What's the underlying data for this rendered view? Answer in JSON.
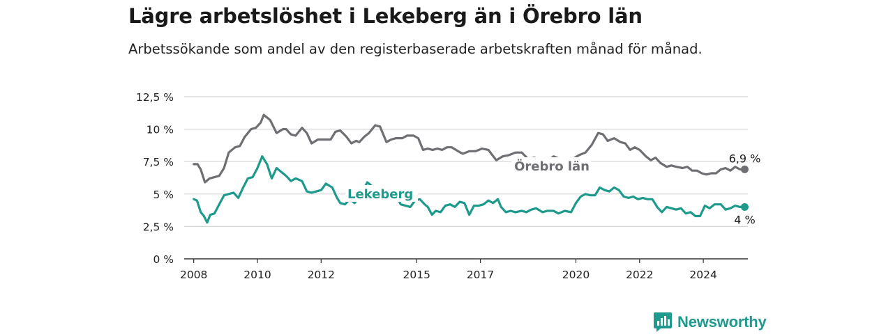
{
  "header": {
    "title": "Lägre arbetslöshet i Lekeberg än i Örebro län",
    "subtitle": "Arbetssökande som andel av den registerbaserade arbetskraften månad för månad."
  },
  "brand": {
    "name": "Newsworthy",
    "icon": "newsworthy-bar-chart-logo-icon",
    "color": "#1f9a8e"
  },
  "chart_data": {
    "type": "line",
    "title": "",
    "xlabel": "",
    "ylabel": "",
    "xlim": [
      2007.7,
      2025.4
    ],
    "ylim": [
      0,
      12.5
    ],
    "grid": true,
    "legend": "inline labels",
    "y_ticks": [
      0,
      2.5,
      5,
      7.5,
      10,
      12.5
    ],
    "y_tick_labels": [
      "0 %",
      "2,5 %",
      "5 %",
      "7,5 %",
      "10 %",
      "12,5 %"
    ],
    "x_ticks": [
      2008,
      2010,
      2012,
      2015,
      2017,
      2020,
      2022,
      2024
    ],
    "x_tick_labels": [
      "2008",
      "2010",
      "2012",
      "2015",
      "2017",
      "2020",
      "2022",
      "2024"
    ],
    "series": [
      {
        "name": "Örebro län",
        "color": "#6e6e73",
        "end_label": "6,9 %",
        "points": [
          [
            2008.0,
            7.3
          ],
          [
            2008.12,
            7.3
          ],
          [
            2008.22,
            6.9
          ],
          [
            2008.35,
            5.9
          ],
          [
            2008.5,
            6.2
          ],
          [
            2008.65,
            6.3
          ],
          [
            2008.8,
            6.4
          ],
          [
            2008.95,
            7.0
          ],
          [
            2009.1,
            8.2
          ],
          [
            2009.3,
            8.6
          ],
          [
            2009.45,
            8.7
          ],
          [
            2009.6,
            9.4
          ],
          [
            2009.8,
            10.0
          ],
          [
            2009.95,
            10.1
          ],
          [
            2010.1,
            10.5
          ],
          [
            2010.2,
            11.1
          ],
          [
            2010.4,
            10.7
          ],
          [
            2010.6,
            9.7
          ],
          [
            2010.8,
            10.0
          ],
          [
            2010.9,
            10.0
          ],
          [
            2011.05,
            9.6
          ],
          [
            2011.2,
            9.5
          ],
          [
            2011.4,
            10.1
          ],
          [
            2011.55,
            9.7
          ],
          [
            2011.7,
            8.9
          ],
          [
            2011.9,
            9.2
          ],
          [
            2012.1,
            9.2
          ],
          [
            2012.3,
            9.2
          ],
          [
            2012.45,
            9.8
          ],
          [
            2012.6,
            9.9
          ],
          [
            2012.8,
            9.4
          ],
          [
            2012.95,
            8.9
          ],
          [
            2013.1,
            9.1
          ],
          [
            2013.2,
            9.0
          ],
          [
            2013.35,
            9.4
          ],
          [
            2013.5,
            9.7
          ],
          [
            2013.7,
            10.3
          ],
          [
            2013.85,
            10.2
          ],
          [
            2014.05,
            9.0
          ],
          [
            2014.2,
            9.2
          ],
          [
            2014.35,
            9.3
          ],
          [
            2014.55,
            9.3
          ],
          [
            2014.7,
            9.5
          ],
          [
            2014.9,
            9.5
          ],
          [
            2015.05,
            9.3
          ],
          [
            2015.2,
            8.4
          ],
          [
            2015.35,
            8.5
          ],
          [
            2015.5,
            8.4
          ],
          [
            2015.65,
            8.5
          ],
          [
            2015.8,
            8.4
          ],
          [
            2015.95,
            8.6
          ],
          [
            2016.1,
            8.6
          ],
          [
            2016.3,
            8.3
          ],
          [
            2016.45,
            8.1
          ],
          [
            2016.65,
            8.3
          ],
          [
            2016.85,
            8.3
          ],
          [
            2017.05,
            8.5
          ],
          [
            2017.25,
            8.4
          ],
          [
            2017.5,
            7.6
          ],
          [
            2017.7,
            7.9
          ],
          [
            2017.9,
            8.0
          ],
          [
            2018.1,
            8.2
          ],
          [
            2018.3,
            8.2
          ],
          [
            2018.5,
            7.7
          ],
          [
            2018.7,
            7.8
          ],
          [
            2018.85,
            7.6
          ],
          [
            2019.0,
            7.7
          ],
          [
            2019.15,
            7.6
          ],
          [
            2019.3,
            7.9
          ],
          [
            2019.5,
            7.7
          ],
          [
            2019.7,
            7.6
          ],
          [
            2019.9,
            7.7
          ],
          [
            2020.1,
            8.0
          ],
          [
            2020.3,
            8.2
          ],
          [
            2020.5,
            8.8
          ],
          [
            2020.7,
            9.7
          ],
          [
            2020.85,
            9.6
          ],
          [
            2021.0,
            9.1
          ],
          [
            2021.2,
            9.3
          ],
          [
            2021.4,
            9.0
          ],
          [
            2021.55,
            8.9
          ],
          [
            2021.7,
            8.4
          ],
          [
            2021.85,
            8.6
          ],
          [
            2022.0,
            8.4
          ],
          [
            2022.2,
            7.9
          ],
          [
            2022.35,
            7.6
          ],
          [
            2022.5,
            7.8
          ],
          [
            2022.65,
            7.4
          ],
          [
            2022.85,
            7.1
          ],
          [
            2023.0,
            7.2
          ],
          [
            2023.15,
            7.1
          ],
          [
            2023.35,
            7.0
          ],
          [
            2023.5,
            7.1
          ],
          [
            2023.65,
            6.8
          ],
          [
            2023.8,
            6.8
          ],
          [
            2023.95,
            6.6
          ],
          [
            2024.1,
            6.5
          ],
          [
            2024.25,
            6.6
          ],
          [
            2024.4,
            6.6
          ],
          [
            2024.55,
            6.9
          ],
          [
            2024.7,
            7.0
          ],
          [
            2024.85,
            6.8
          ],
          [
            2025.0,
            7.1
          ],
          [
            2025.15,
            6.9
          ],
          [
            2025.3,
            6.9
          ]
        ]
      },
      {
        "name": "Lekeberg",
        "color": "#1e9a8d",
        "end_label": "4 %",
        "points": [
          [
            2008.0,
            4.6
          ],
          [
            2008.1,
            4.5
          ],
          [
            2008.22,
            3.6
          ],
          [
            2008.32,
            3.3
          ],
          [
            2008.42,
            2.8
          ],
          [
            2008.52,
            3.4
          ],
          [
            2008.65,
            3.5
          ],
          [
            2008.8,
            4.2
          ],
          [
            2008.95,
            4.9
          ],
          [
            2009.1,
            5.0
          ],
          [
            2009.25,
            5.1
          ],
          [
            2009.4,
            4.7
          ],
          [
            2009.55,
            5.5
          ],
          [
            2009.7,
            6.2
          ],
          [
            2009.85,
            6.3
          ],
          [
            2010.0,
            7.0
          ],
          [
            2010.15,
            7.9
          ],
          [
            2010.3,
            7.3
          ],
          [
            2010.45,
            6.2
          ],
          [
            2010.6,
            7.0
          ],
          [
            2010.75,
            6.7
          ],
          [
            2010.9,
            6.4
          ],
          [
            2011.05,
            6.0
          ],
          [
            2011.2,
            6.2
          ],
          [
            2011.4,
            6.0
          ],
          [
            2011.55,
            5.2
          ],
          [
            2011.7,
            5.1
          ],
          [
            2011.85,
            5.2
          ],
          [
            2012.0,
            5.3
          ],
          [
            2012.15,
            5.8
          ],
          [
            2012.35,
            5.5
          ],
          [
            2012.5,
            4.7
          ],
          [
            2012.6,
            4.3
          ],
          [
            2012.75,
            4.2
          ],
          [
            2012.9,
            4.6
          ],
          [
            2013.05,
            4.3
          ],
          [
            2013.25,
            5.0
          ],
          [
            2013.45,
            5.9
          ],
          [
            2013.6,
            5.6
          ],
          [
            2013.75,
            5.1
          ],
          [
            2013.9,
            5.0
          ],
          [
            2014.05,
            5.3
          ],
          [
            2014.2,
            4.6
          ],
          [
            2014.35,
            4.9
          ],
          [
            2014.5,
            4.2
          ],
          [
            2014.65,
            4.1
          ],
          [
            2014.8,
            4.0
          ],
          [
            2014.95,
            4.5
          ],
          [
            2015.1,
            4.6
          ],
          [
            2015.25,
            4.2
          ],
          [
            2015.35,
            4.0
          ],
          [
            2015.48,
            3.4
          ],
          [
            2015.6,
            3.7
          ],
          [
            2015.75,
            3.6
          ],
          [
            2015.9,
            4.1
          ],
          [
            2016.05,
            4.2
          ],
          [
            2016.2,
            4.0
          ],
          [
            2016.35,
            4.4
          ],
          [
            2016.5,
            4.3
          ],
          [
            2016.65,
            3.4
          ],
          [
            2016.8,
            4.1
          ],
          [
            2016.95,
            4.1
          ],
          [
            2017.1,
            4.2
          ],
          [
            2017.25,
            4.5
          ],
          [
            2017.4,
            4.3
          ],
          [
            2017.55,
            4.6
          ],
          [
            2017.65,
            4.0
          ],
          [
            2017.8,
            3.6
          ],
          [
            2017.95,
            3.7
          ],
          [
            2018.1,
            3.6
          ],
          [
            2018.3,
            3.7
          ],
          [
            2018.45,
            3.6
          ],
          [
            2018.6,
            3.8
          ],
          [
            2018.75,
            3.9
          ],
          [
            2018.95,
            3.6
          ],
          [
            2019.1,
            3.7
          ],
          [
            2019.3,
            3.7
          ],
          [
            2019.45,
            3.5
          ],
          [
            2019.65,
            3.7
          ],
          [
            2019.85,
            3.6
          ],
          [
            2020.0,
            4.3
          ],
          [
            2020.15,
            4.8
          ],
          [
            2020.3,
            5.0
          ],
          [
            2020.45,
            4.9
          ],
          [
            2020.6,
            4.9
          ],
          [
            2020.75,
            5.5
          ],
          [
            2020.9,
            5.3
          ],
          [
            2021.05,
            5.2
          ],
          [
            2021.2,
            5.5
          ],
          [
            2021.35,
            5.3
          ],
          [
            2021.5,
            4.8
          ],
          [
            2021.65,
            4.7
          ],
          [
            2021.8,
            4.8
          ],
          [
            2021.95,
            4.6
          ],
          [
            2022.1,
            4.7
          ],
          [
            2022.25,
            4.6
          ],
          [
            2022.4,
            4.6
          ],
          [
            2022.55,
            4.0
          ],
          [
            2022.7,
            3.6
          ],
          [
            2022.85,
            4.0
          ],
          [
            2023.0,
            3.9
          ],
          [
            2023.15,
            3.8
          ],
          [
            2023.3,
            3.9
          ],
          [
            2023.45,
            3.5
          ],
          [
            2023.6,
            3.6
          ],
          [
            2023.75,
            3.3
          ],
          [
            2023.9,
            3.3
          ],
          [
            2024.05,
            4.1
          ],
          [
            2024.2,
            3.9
          ],
          [
            2024.35,
            4.2
          ],
          [
            2024.55,
            4.2
          ],
          [
            2024.7,
            3.8
          ],
          [
            2024.85,
            3.9
          ],
          [
            2025.0,
            4.1
          ],
          [
            2025.15,
            4.0
          ],
          [
            2025.3,
            4.0
          ]
        ]
      }
    ]
  }
}
